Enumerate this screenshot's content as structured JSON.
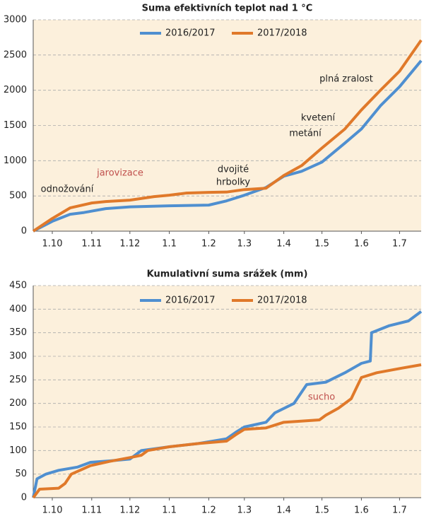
{
  "chart_data": [
    {
      "type": "line",
      "title": "Suma efektivních teplot nad 1 °C",
      "xlim": [
        0,
        305
      ],
      "xticks": [
        {
          "value": 15,
          "label": "1.10"
        },
        {
          "value": 46,
          "label": "1.11"
        },
        {
          "value": 76,
          "label": "1.12"
        },
        {
          "value": 107,
          "label": "1.1"
        },
        {
          "value": 138,
          "label": "1.2"
        },
        {
          "value": 166,
          "label": "1.3"
        },
        {
          "value": 197,
          "label": "1.4"
        },
        {
          "value": 227,
          "label": "1.5"
        },
        {
          "value": 258,
          "label": "1.6"
        },
        {
          "value": 288,
          "label": "1.7"
        }
      ],
      "ylim": [
        0,
        3000
      ],
      "yticks": [
        0,
        500,
        1000,
        1500,
        2000,
        2500,
        3000
      ],
      "grid": true,
      "series": [
        {
          "name": "2016/2017",
          "color": "#4f8fd0",
          "x": [
            0,
            15,
            29,
            40,
            57,
            76,
            107,
            138,
            152,
            166,
            183,
            197,
            211,
            227,
            245,
            258,
            273,
            288,
            305
          ],
          "values": [
            0,
            140,
            240,
            265,
            320,
            345,
            360,
            370,
            430,
            510,
            620,
            780,
            850,
            980,
            1250,
            1450,
            1780,
            2050,
            2420
          ]
        },
        {
          "name": "2017/2018",
          "color": "#e0792a",
          "x": [
            0,
            15,
            29,
            46,
            57,
            76,
            95,
            107,
            120,
            138,
            152,
            166,
            183,
            197,
            211,
            227,
            245,
            258,
            273,
            288,
            305
          ],
          "values": [
            0,
            180,
            330,
            400,
            420,
            440,
            490,
            510,
            540,
            550,
            555,
            590,
            610,
            790,
            930,
            1180,
            1450,
            1720,
            2000,
            2270,
            2710
          ]
        }
      ],
      "annotations": [
        {
          "text": "odnožování",
          "color": "#222222"
        },
        {
          "text": "jarovizace",
          "color": "#c0504d"
        },
        {
          "text": "dvojité",
          "color": "#222222"
        },
        {
          "text": "hrbolky",
          "color": "#222222"
        },
        {
          "text": "kvetení",
          "color": "#222222"
        },
        {
          "text": "metání",
          "color": "#222222"
        },
        {
          "text": "plná zralost",
          "color": "#222222"
        }
      ]
    },
    {
      "type": "line",
      "title": "Kumulativní suma srážek (mm)",
      "xlim": [
        0,
        305
      ],
      "xticks": [
        {
          "value": 15,
          "label": "1.10"
        },
        {
          "value": 46,
          "label": "1.11"
        },
        {
          "value": 76,
          "label": "1.12"
        },
        {
          "value": 107,
          "label": "1.1"
        },
        {
          "value": 138,
          "label": "1.2"
        },
        {
          "value": 166,
          "label": "1.3"
        },
        {
          "value": 197,
          "label": "1.4"
        },
        {
          "value": 227,
          "label": "1.5"
        },
        {
          "value": 258,
          "label": "1.6"
        },
        {
          "value": 288,
          "label": "1.7"
        }
      ],
      "ylim": [
        0,
        450
      ],
      "yticks": [
        0,
        50,
        100,
        150,
        200,
        250,
        300,
        350,
        400,
        450
      ],
      "grid": true,
      "series": [
        {
          "name": "2016/2017",
          "color": "#4f8fd0",
          "x": [
            0,
            3,
            10,
            20,
            35,
            45,
            60,
            76,
            85,
            107,
            130,
            152,
            160,
            166,
            183,
            190,
            205,
            215,
            230,
            245,
            258,
            265,
            266,
            280,
            295,
            305
          ],
          "values": [
            0,
            40,
            50,
            58,
            65,
            75,
            78,
            82,
            100,
            108,
            115,
            125,
            140,
            150,
            160,
            180,
            200,
            240,
            245,
            265,
            285,
            290,
            350,
            365,
            375,
            395
          ]
        },
        {
          "name": "2017/2018",
          "color": "#e0792a",
          "x": [
            0,
            5,
            20,
            25,
            30,
            45,
            60,
            76,
            85,
            90,
            107,
            130,
            152,
            160,
            166,
            183,
            197,
            225,
            230,
            240,
            250,
            258,
            270,
            290,
            305
          ],
          "values": [
            0,
            18,
            20,
            30,
            50,
            68,
            77,
            85,
            90,
            100,
            108,
            115,
            120,
            135,
            145,
            148,
            160,
            165,
            175,
            190,
            210,
            255,
            265,
            275,
            282
          ]
        }
      ],
      "annotations": [
        {
          "text": "sucho",
          "color": "#c0504d"
        }
      ]
    }
  ]
}
